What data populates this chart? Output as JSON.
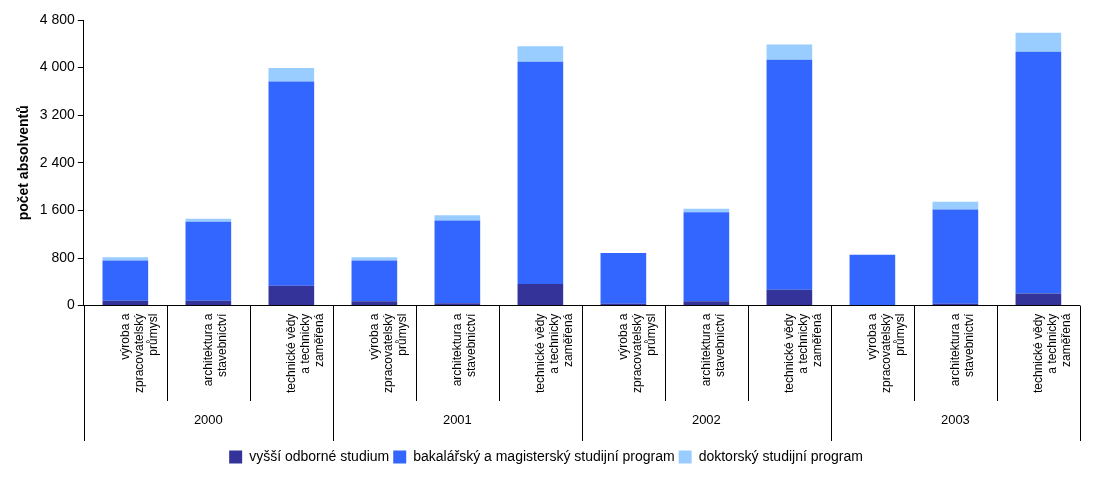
{
  "chart_data": {
    "type": "bar",
    "stacked": true,
    "ylabel": "počet absolventů",
    "categories": [
      "výroba a zpracovatelský průmysl",
      "architektura a stavebnictví",
      "technické vědy a technicky zaměřená",
      "výroba a zpracovatelský průmysl",
      "architektura a stavebnictví",
      "technické vědy a technicky zaměřená",
      "výroba a zpracovatelský průmysl",
      "architektura a stavebnictví",
      "technické vědy a technicky zaměřená",
      "výroba a zpracovatelský průmysl",
      "architektura a stavebnictví",
      "technické vědy a technicky zaměřená"
    ],
    "annotations": [
      "2000",
      "2001",
      "2002",
      "2003"
    ],
    "series": [
      {
        "name": "vyšší odborné studium",
        "color": "#333399",
        "values": [
          80,
          80,
          335,
          75,
          40,
          365,
          30,
          75,
          265,
          0,
          30,
          205
        ]
      },
      {
        "name": "bakalářský a magisterský studijní program",
        "color": "#3366ff",
        "values": [
          680,
          1330,
          3430,
          685,
          1390,
          3735,
          855,
          1495,
          3865,
          855,
          1585,
          4060
        ]
      },
      {
        "name": "doktorský studijní program",
        "color": "#99ccff",
        "values": [
          55,
          50,
          230,
          55,
          90,
          260,
          0,
          60,
          260,
          0,
          130,
          320
        ]
      }
    ],
    "ylim": [
      0,
      4800
    ],
    "yticks": [
      0,
      {
        "value": 800,
        "label": "800"
      },
      {
        "value": 1600,
        "label": "1 600"
      },
      {
        "value": 2400,
        "label": "2 400"
      },
      {
        "value": 3200,
        "label": "3 200"
      },
      {
        "value": 4000,
        "label": "4 000"
      },
      {
        "value": 4800,
        "label": "4 800"
      }
    ],
    "grid": false,
    "legend": "bottom"
  }
}
